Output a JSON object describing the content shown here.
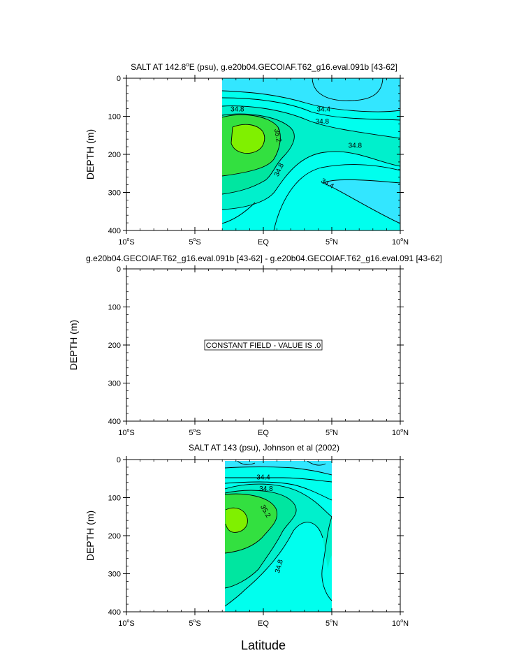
{
  "figure": {
    "xlabel": "Latitude"
  },
  "colors": {
    "bands": [
      "#00ccf0",
      "#33e6ff",
      "#00ffee",
      "#00f0cc",
      "#00e6a0",
      "#33e040",
      "#80f000"
    ],
    "line": "#000000"
  },
  "chart_data": [
    {
      "type": "contour",
      "title_pre": "SALT AT 142.8",
      "title_sup": "o",
      "title_post": "E (psu), g.e20b04.GECOIAF.T62_g16.eval.091b [43-62]",
      "ylabel": "DEPTH (m)",
      "xlim": [
        -10,
        10
      ],
      "ylim": [
        400,
        0
      ],
      "data_xlim": [
        -3.2,
        10
      ],
      "yticks": [
        0,
        100,
        200,
        300,
        400
      ],
      "xticks": [
        {
          "v": -10,
          "num": "10",
          "hem": "S"
        },
        {
          "v": -5,
          "num": "5",
          "hem": "S"
        },
        {
          "v": 0,
          "num": "",
          "hem": "",
          "text": "EQ"
        },
        {
          "v": 5,
          "num": "5",
          "hem": "N"
        },
        {
          "v": 10,
          "num": "10",
          "hem": "N"
        }
      ],
      "contour_levels": [
        34.2,
        34.4,
        34.6,
        34.8,
        35.0,
        35.2
      ],
      "labels": [
        {
          "text": "34.8",
          "x": -1.9,
          "y": 80,
          "rot": 0
        },
        {
          "text": "34.4",
          "x": 4.4,
          "y": 80,
          "rot": 0
        },
        {
          "text": "34.8",
          "x": 4.3,
          "y": 112,
          "rot": 0
        },
        {
          "text": "35.2",
          "x": 1.1,
          "y": 150,
          "rot": 80
        },
        {
          "text": "34.8",
          "x": 6.7,
          "y": 175,
          "rot": 0
        },
        {
          "text": "34.8",
          "x": 1.1,
          "y": 240,
          "rot": -65
        },
        {
          "text": "34.4",
          "x": 4.7,
          "y": 275,
          "rot": 30
        }
      ]
    },
    {
      "type": "contour",
      "title_pre": "g.e20b04.GECOIAF.T62_g16.eval.091b [43-62] - g.e20b04.GECOIAF.T62_g16.eval.091 [43-62]",
      "title_sup": "",
      "title_post": "",
      "ylabel": "DEPTH (m)",
      "xlim": [
        -10,
        10
      ],
      "ylim": [
        400,
        0
      ],
      "yticks": [
        0,
        100,
        200,
        300,
        400
      ],
      "xticks": [
        {
          "v": -10,
          "num": "10",
          "hem": "S"
        },
        {
          "v": -5,
          "num": "5",
          "hem": "S"
        },
        {
          "v": 0,
          "num": "",
          "hem": "",
          "text": "EQ"
        },
        {
          "v": 5,
          "num": "5",
          "hem": "N"
        },
        {
          "v": 10,
          "num": "10",
          "hem": "N"
        }
      ],
      "constant_field_label": "CONSTANT FIELD - VALUE IS .0",
      "constant_value": 0.0
    },
    {
      "type": "contour",
      "title_pre": "SALT AT 143 (psu), Johnson et al (2002)",
      "title_sup": "",
      "title_post": "",
      "ylabel": "DEPTH (m)",
      "xlim": [
        -10,
        10
      ],
      "ylim": [
        400,
        0
      ],
      "data_xlim": [
        -2.8,
        5
      ],
      "yticks": [
        0,
        100,
        200,
        300,
        400
      ],
      "xticks": [
        {
          "v": -10,
          "num": "10",
          "hem": "S"
        },
        {
          "v": -5,
          "num": "5",
          "hem": "S"
        },
        {
          "v": 0,
          "num": "",
          "hem": "",
          "text": "EQ"
        },
        {
          "v": 5,
          "num": "5",
          "hem": "N"
        },
        {
          "v": 10,
          "num": "10",
          "hem": "N"
        }
      ],
      "contour_levels": [
        34.2,
        34.4,
        34.6,
        34.8,
        35.0,
        35.2
      ],
      "labels": [
        {
          "text": "34.4",
          "x": 0.0,
          "y": 45,
          "rot": 0
        },
        {
          "text": "34.8",
          "x": 0.2,
          "y": 75,
          "rot": 0
        },
        {
          "text": "35.2",
          "x": 0.2,
          "y": 135,
          "rot": 60
        },
        {
          "text": "34.8",
          "x": 1.1,
          "y": 280,
          "rot": -75
        }
      ]
    }
  ]
}
